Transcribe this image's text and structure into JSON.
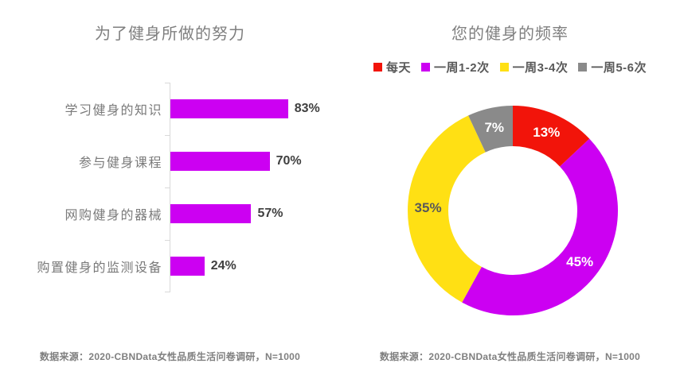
{
  "chart_data": [
    {
      "type": "bar",
      "orientation": "horizontal",
      "title": "为了健身所做的努力",
      "categories": [
        "学习健身的知识",
        "参与健身课程",
        "网购健身的器械",
        "购置健身的监测设备"
      ],
      "values": [
        83,
        70,
        57,
        24
      ],
      "value_labels": [
        "83%",
        "70%",
        "57%",
        "24%"
      ],
      "xlim": [
        0,
        100
      ],
      "grid": false,
      "bar_color": "#CC00F2",
      "value_label_color": "#404040",
      "category_label_color": "#7A7A7A",
      "source": "数据来源：2020-CBNData女性品质生活问卷调研，N=1000"
    },
    {
      "type": "pie",
      "donut": true,
      "title": "您的健身的频率",
      "legend_position": "top",
      "legend": [
        "每天",
        "一周1-2次",
        "一周3-4次",
        "一周5-6次"
      ],
      "values": [
        13,
        45,
        35,
        7
      ],
      "value_labels": [
        "13%",
        "45%",
        "35%",
        "7%"
      ],
      "slice_colors": [
        "#F2140A",
        "#CC00F2",
        "#FFE014",
        "#8A8A8A"
      ],
      "value_label_colors": [
        "#FFFFFF",
        "#FFFFFF",
        "#595959",
        "#FFFFFF"
      ],
      "start_angle_deg": 0,
      "direction": "clockwise",
      "source": "数据来源：2020-CBNData女性品质生活问卷调研，N=1000"
    }
  ]
}
